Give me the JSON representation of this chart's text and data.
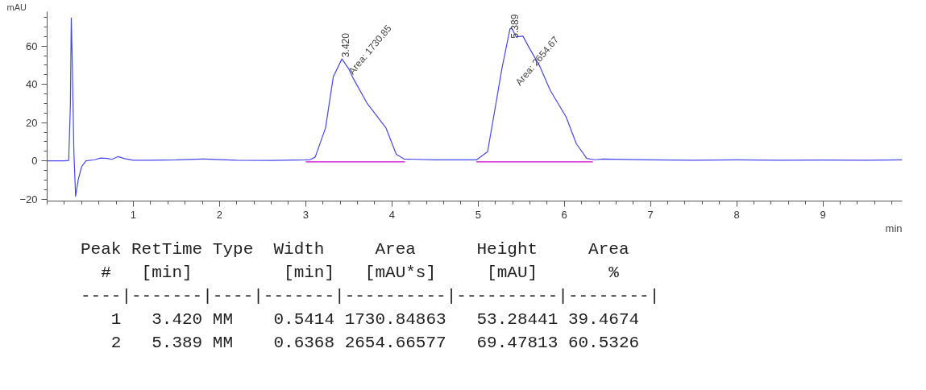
{
  "chart_data": {
    "type": "line",
    "xlabel": "min",
    "ylabel": "mAU",
    "xlim": [
      0,
      9.92
    ],
    "ylim": [
      -21,
      78
    ],
    "xticks": [
      1,
      2,
      3,
      4,
      5,
      6,
      7,
      8,
      9
    ],
    "yticks": [
      -20,
      0,
      20,
      40,
      60
    ],
    "grid": false,
    "line_style": "solid",
    "marker": "none",
    "series": [
      {
        "color": "#4646f0",
        "x": [
          0,
          0.1,
          0.2,
          0.25,
          0.27,
          0.28,
          0.29,
          0.31,
          0.33,
          0.36,
          0.4,
          0.45,
          0.55,
          0.62,
          0.7,
          0.75,
          0.82,
          0.9,
          1.0,
          1.2,
          1.5,
          1.8,
          2.2,
          2.6,
          3.0,
          3.05,
          3.11,
          3.23,
          3.32,
          3.42,
          3.5,
          3.55,
          3.715,
          3.93,
          4.05,
          4.14,
          4.5,
          4.98,
          5.11,
          5.185,
          5.275,
          5.37,
          5.389,
          5.44,
          5.52,
          5.59,
          5.715,
          5.836,
          6.02,
          6.14,
          6.26,
          6.35,
          6.45,
          7.0,
          7.5,
          8.0,
          8.5,
          9.0,
          9.5,
          9.92
        ],
        "values": [
          0,
          0,
          0,
          0.2,
          30,
          74.7,
          55,
          5,
          -18.5,
          -10,
          -3,
          0,
          0.6,
          1.5,
          1.3,
          0.8,
          2.2,
          1.2,
          0.3,
          0.3,
          0.5,
          1.0,
          0.3,
          0.2,
          0.5,
          0.6,
          2,
          17.3,
          44,
          53.3,
          48,
          43.2,
          29.9,
          17.3,
          3.4,
          1.0,
          0.5,
          0.5,
          4.8,
          24.3,
          48,
          69.1,
          69.5,
          64.9,
          65.2,
          59.3,
          49.5,
          36.9,
          23,
          8.9,
          1.3,
          0.6,
          1.0,
          0.5,
          0.3,
          0.5,
          0.3,
          0.4,
          0.3,
          0.5
        ]
      },
      {
        "color": "#cc00cc",
        "x": [
          3.0,
          4.15
        ],
        "values": [
          -0.5,
          -0.5
        ]
      },
      {
        "color": "#cc00cc",
        "x": [
          4.98,
          6.33
        ],
        "values": [
          -0.5,
          -0.5
        ]
      }
    ],
    "annotations": [
      {
        "text": "3.420",
        "x": 3.42,
        "y": 53.3
      },
      {
        "text": "Area: 1730.85",
        "x": 3.55,
        "y": 43.2
      },
      {
        "text": "5.389",
        "x": 5.389,
        "y": 69.5
      },
      {
        "text": "Area: 2654.67",
        "x": 5.715,
        "y": 49.5
      },
      "Peak RetTime Type  Width     Area      Height     Area",
      "  #   [min]         [min]   [mAU*s]     [mAU]       %",
      "----|-------|----|-------|----------|----------|--------|",
      "   1   3.420 MM    0.5414 1730.84863   53.28441 39.4674",
      "   2   5.389 MM    0.6368 2654.66577   69.47813 60.5326"
    ]
  }
}
